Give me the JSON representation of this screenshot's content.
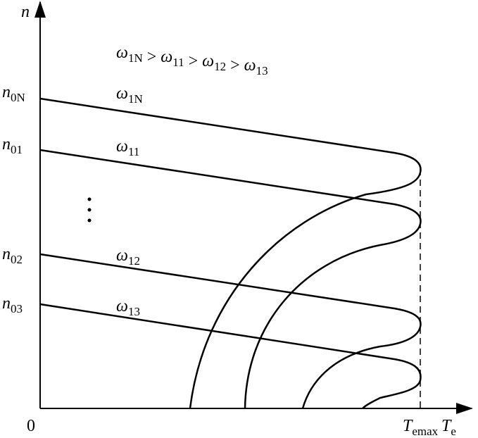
{
  "axes": {
    "y_label": "n",
    "x_label": {
      "symbol": "T",
      "subscript": "e"
    },
    "origin": "0",
    "x_mark": {
      "symbol": "T",
      "subscript": "emax"
    }
  },
  "speed_labels": [
    {
      "symbol": "n",
      "subscript": "0N"
    },
    {
      "symbol": "n",
      "subscript": "01"
    },
    {
      "symbol": "n",
      "subscript": "02"
    },
    {
      "symbol": "n",
      "subscript": "03"
    }
  ],
  "curve_labels": [
    {
      "symbol": "ω",
      "subscript": "1N"
    },
    {
      "symbol": "ω",
      "subscript": "11"
    },
    {
      "symbol": "ω",
      "subscript": "12"
    },
    {
      "symbol": "ω",
      "subscript": "13"
    }
  ],
  "relation": {
    "operator": ">",
    "terms": [
      {
        "symbol": "ω",
        "subscript": "1N"
      },
      {
        "symbol": "ω",
        "subscript": "11"
      },
      {
        "symbol": "ω",
        "subscript": "12"
      },
      {
        "symbol": "ω",
        "subscript": "13"
      }
    ]
  }
}
